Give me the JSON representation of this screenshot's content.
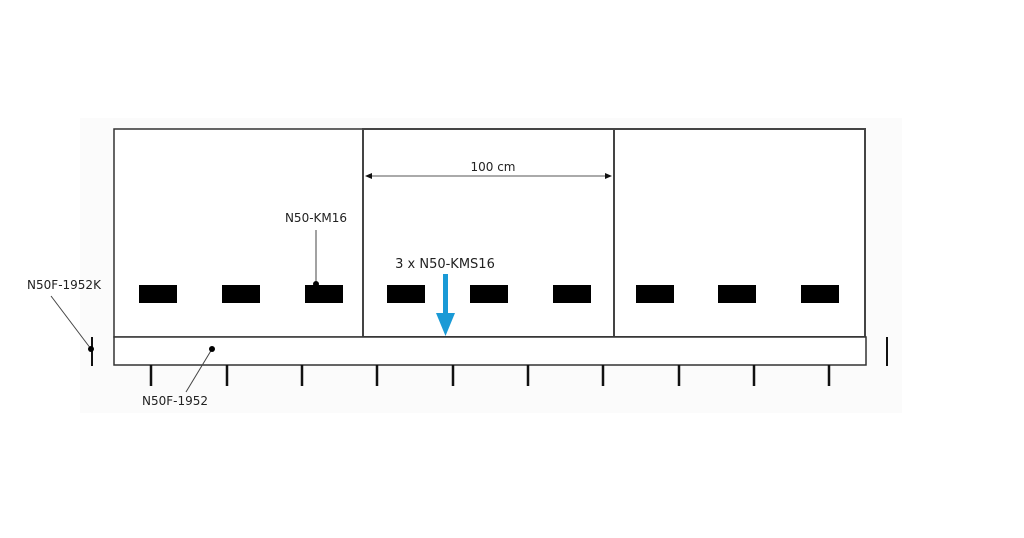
{
  "labels": {
    "dimension": "100 cm",
    "bracket": "N50-KM16",
    "bracket_set": "3 x N50-KMS16",
    "end_cap": "N50F-1952K",
    "rail": "N50F-1952"
  },
  "colors": {
    "line": "#333333",
    "block": "#000000",
    "arrow": "#1a9ad6"
  }
}
